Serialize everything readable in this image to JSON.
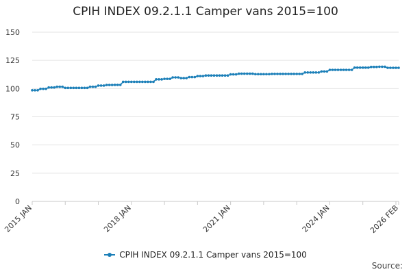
{
  "chart_data": {
    "type": "line",
    "title": "CPIH INDEX 09.2.1.1 Camper vans 2015=100",
    "xlabel": "",
    "ylabel": "",
    "ylim": [
      0,
      150
    ],
    "yticks": [
      "0",
      "25",
      "50",
      "75",
      "100",
      "125",
      "150"
    ],
    "xticks": [
      "2015 JAN",
      "2018 JAN",
      "2021 JAN",
      "2024 JAN",
      "2026 FEB"
    ],
    "x_range": [
      "2015-01",
      "2026-02"
    ],
    "grid": true,
    "legend": "bottom",
    "series": [
      {
        "name": "CPIH INDEX 09.2.1.1 Camper vans 2015=100",
        "color": "#1b7fb8",
        "start": "2015-01",
        "frequency": "monthly",
        "values": [
          98.5,
          98.5,
          98.5,
          99.8,
          99.8,
          99.8,
          101.0,
          101.0,
          101.0,
          101.6,
          101.6,
          101.6,
          100.6,
          100.6,
          100.6,
          100.6,
          100.6,
          100.6,
          100.6,
          100.6,
          100.6,
          101.6,
          101.6,
          101.6,
          102.7,
          102.7,
          102.7,
          103.2,
          103.2,
          103.2,
          103.3,
          103.3,
          103.3,
          106.0,
          106.0,
          106.0,
          106.0,
          106.0,
          106.0,
          106.0,
          106.0,
          106.0,
          106.0,
          106.0,
          106.0,
          108.2,
          108.2,
          108.2,
          108.6,
          108.6,
          108.6,
          109.9,
          109.9,
          109.9,
          109.3,
          109.3,
          109.3,
          110.2,
          110.2,
          110.2,
          111.1,
          111.1,
          111.1,
          111.6,
          111.6,
          111.6,
          111.6,
          111.6,
          111.6,
          111.6,
          111.6,
          111.6,
          112.6,
          112.6,
          112.6,
          113.2,
          113.2,
          113.2,
          113.2,
          113.2,
          113.2,
          112.8,
          112.8,
          112.8,
          112.8,
          112.8,
          112.8,
          113.0,
          113.0,
          113.0,
          113.0,
          113.0,
          113.0,
          113.0,
          113.0,
          113.0,
          113.0,
          113.0,
          113.0,
          114.3,
          114.3,
          114.3,
          114.3,
          114.3,
          114.3,
          115.2,
          115.2,
          115.2,
          116.6,
          116.6,
          116.6,
          116.6,
          116.6,
          116.6,
          116.6,
          116.6,
          116.6,
          118.6,
          118.6,
          118.6,
          118.6,
          118.6,
          118.6,
          119.2,
          119.2,
          119.2,
          119.4,
          119.4,
          119.4,
          118.4,
          118.4,
          118.4,
          118.4,
          118.4
        ]
      }
    ],
    "source_label": "Source:"
  }
}
